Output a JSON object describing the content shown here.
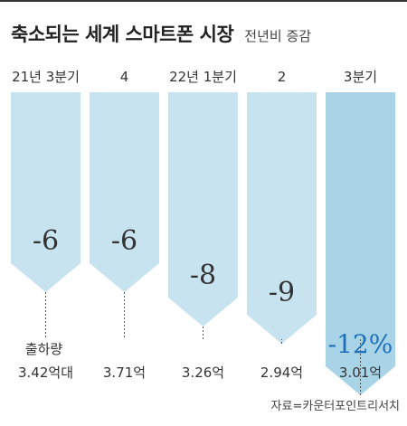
{
  "title": "축소되는 세계 스마트폰 시장",
  "subtitle": "전년비 증감",
  "source": "자료=카운터포인트리서치",
  "colors": {
    "bar_fill": "#c7e3f0",
    "bar_highlight": "#a9d4e8",
    "value_text": "#333333",
    "highlight_text": "#1e6fb5",
    "dotted_line": "#555555",
    "text": "#333333"
  },
  "chart_data": {
    "type": "bar",
    "orientation": "downward",
    "categories": [
      "21년 3분기",
      "4",
      "22년 1분기",
      "2",
      "3분기"
    ],
    "values": [
      -6,
      -6,
      -8,
      -9,
      -12
    ],
    "value_labels": [
      "-6",
      "-6",
      "-8",
      "-9",
      "-12%"
    ],
    "highlight_index": 4,
    "shipments_label": "출하량",
    "shipments": [
      "3.42억대",
      "3.71억",
      "3.26억",
      "2.94억",
      "3.01억"
    ],
    "ylim": [
      0,
      -12
    ],
    "grid": false,
    "legend": "none"
  }
}
